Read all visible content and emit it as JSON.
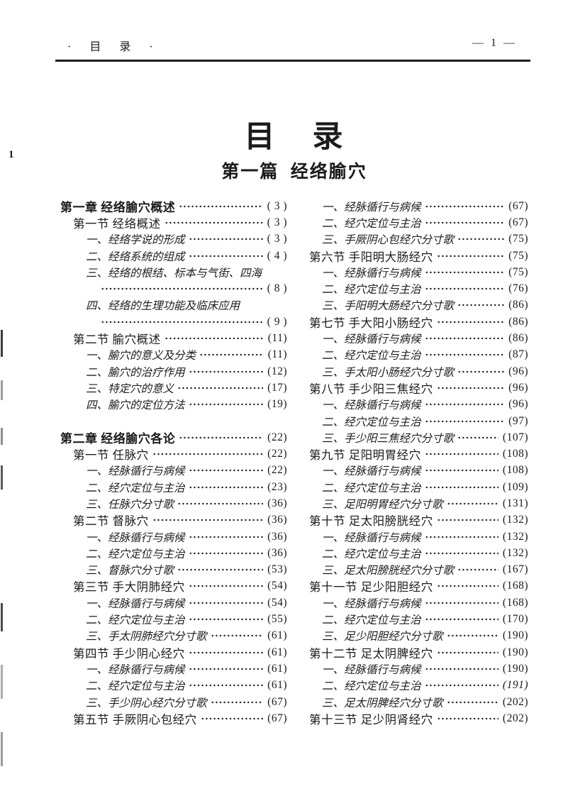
{
  "header": {
    "left": "· 目 录 ·",
    "right": "— 1 —",
    "margin_note": "1"
  },
  "title": "目    录",
  "part_title": "第一篇  经络腧穴",
  "columns": {
    "left": [
      {
        "t": "chapter",
        "label": "第一章  经络腧穴概述",
        "page": "( 3 )"
      },
      {
        "t": "section",
        "label": "第一节  经络概述",
        "page": "( 3 )"
      },
      {
        "t": "item",
        "label": "一、经络学说的形成",
        "page": "( 3 )"
      },
      {
        "t": "item",
        "label": "二、经络系统的组成",
        "page": "( 4 )"
      },
      {
        "t": "wrap",
        "label": "三、经络的根结、标本与气街、四海"
      },
      {
        "t": "cont",
        "page": "( 8 )"
      },
      {
        "t": "wrap",
        "label": "四、经络的生理功能及临床应用"
      },
      {
        "t": "cont",
        "page": "( 9 )"
      },
      {
        "t": "section",
        "label": "第二节  腧穴概述",
        "page": "(11)"
      },
      {
        "t": "item",
        "label": "一、腧穴的意义及分类",
        "page": "(11)"
      },
      {
        "t": "item",
        "label": "二、腧穴的治疗作用",
        "page": "(12)"
      },
      {
        "t": "item",
        "label": "三、特定穴的意义",
        "page": "(17)"
      },
      {
        "t": "item",
        "label": "四、腧穴的定位方法",
        "page": "(19)"
      },
      {
        "t": "gap"
      },
      {
        "t": "chapter",
        "label": "第二章  经络腧穴各论",
        "page": "(22)"
      },
      {
        "t": "section",
        "label": "第一节  任脉穴",
        "page": "(22)"
      },
      {
        "t": "item",
        "label": "一、经脉循行与病候",
        "page": "(22)"
      },
      {
        "t": "item",
        "label": "二、经穴定位与主治",
        "page": "(23)"
      },
      {
        "t": "item",
        "label": "三、任脉穴分寸歌",
        "page": "(36)"
      },
      {
        "t": "section",
        "label": "第二节  督脉穴",
        "page": "(36)"
      },
      {
        "t": "item",
        "label": "一、经脉循行与病候",
        "page": "(36)"
      },
      {
        "t": "item",
        "label": "二、经穴定位与主治",
        "page": "(36)"
      },
      {
        "t": "item",
        "label": "三、督脉穴分寸歌",
        "page": "(53)"
      },
      {
        "t": "section",
        "label": "第三节  手大阴肺经穴",
        "page": "(54)"
      },
      {
        "t": "item",
        "label": "一、经脉循行与病候",
        "page": "(54)"
      },
      {
        "t": "item",
        "label": "二、经穴定位与主治",
        "page": "(55)"
      },
      {
        "t": "item",
        "label": "三、手太阴肺经穴分寸歌",
        "page": "(61)"
      },
      {
        "t": "section",
        "label": "第四节  手少阴心经穴",
        "page": "(61)"
      },
      {
        "t": "item",
        "label": "一、经脉循行与病候",
        "page": "(61)"
      },
      {
        "t": "item",
        "label": "二、经穴定位与主治",
        "page": "(61)"
      },
      {
        "t": "item",
        "label": "三、手少阴心经穴分寸歌",
        "page": "(67)"
      },
      {
        "t": "section",
        "label": "第五节  手厥阴心包经穴",
        "page": "(67)"
      }
    ],
    "right": [
      {
        "t": "item",
        "label": "一、经脉循行与病候",
        "page": "(67)"
      },
      {
        "t": "item",
        "label": "二、经穴定位与主治",
        "page": "(67)"
      },
      {
        "t": "item",
        "label": "三、手厥阴心包经穴分寸歌",
        "page": "(75)"
      },
      {
        "t": "section",
        "label": "第六节  手阳明大肠经穴",
        "page": "(75)"
      },
      {
        "t": "item",
        "label": "一、经脉循行与病候",
        "page": "(75)"
      },
      {
        "t": "item",
        "label": "二、经穴定位与主治",
        "page": "(76)"
      },
      {
        "t": "item",
        "label": "三、手阳明大肠经穴分寸歌",
        "page": "(86)"
      },
      {
        "t": "section",
        "label": "第七节  手大阳小肠经穴",
        "page": "(86)"
      },
      {
        "t": "item",
        "label": "一、经脉循行与病候",
        "page": "(86)"
      },
      {
        "t": "item",
        "label": "二、经穴定位与主治",
        "page": "(87)"
      },
      {
        "t": "item",
        "label": "三、手太阳小肠经穴分寸歌",
        "page": "(96)"
      },
      {
        "t": "section",
        "label": "第八节  手少阳三焦经穴",
        "page": "(96)"
      },
      {
        "t": "item",
        "label": "一、经脉循行与病候",
        "page": "(96)"
      },
      {
        "t": "item",
        "label": "二、经穴定位与主治",
        "page": "(97)"
      },
      {
        "t": "item",
        "label": "三、手少阳三焦经穴分寸歌",
        "page": "(107)"
      },
      {
        "t": "section",
        "label": "第九节  足阳明胃经穴",
        "page": "(108)"
      },
      {
        "t": "item",
        "label": "一、经脉循行与病候",
        "page": "(108)"
      },
      {
        "t": "item",
        "label": "二、经穴定位与主治",
        "page": "(109)"
      },
      {
        "t": "item",
        "label": "三、足阳明胃经穴分寸歌",
        "page": "(131)"
      },
      {
        "t": "section",
        "label": "第十节  足太阳膀胱经穴",
        "page": "(132)"
      },
      {
        "t": "item",
        "label": "一、经脉循行与病候",
        "page": "(132)"
      },
      {
        "t": "item",
        "label": "二、经穴定位与主治",
        "page": "(132)"
      },
      {
        "t": "item",
        "label": "三、足太阳膀胱经穴分寸歌",
        "page": "(167)"
      },
      {
        "t": "section",
        "label": "第十一节  足少阳胆经穴",
        "page": "(168)"
      },
      {
        "t": "item",
        "label": "一、经脉循行与病候",
        "page": "(168)"
      },
      {
        "t": "item",
        "label": "二、经穴定位与主治",
        "page": "(170)"
      },
      {
        "t": "item",
        "label": "三、足少阳胆经穴分寸歌",
        "page": "(190)"
      },
      {
        "t": "section",
        "label": "第十二节  足太阴脾经穴",
        "page": "(190)"
      },
      {
        "t": "item",
        "label": "一、经脉循行与病候",
        "page": "(190)"
      },
      {
        "t": "item",
        "label": "二、经穴定位与主治",
        "page": "(191)",
        "italic_page": true
      },
      {
        "t": "item",
        "label": "三、足太阴脾经穴分寸歌",
        "page": "(202)"
      },
      {
        "t": "section",
        "label": "第十三节  足少阴肾经穴",
        "page": "(202)"
      }
    ]
  }
}
